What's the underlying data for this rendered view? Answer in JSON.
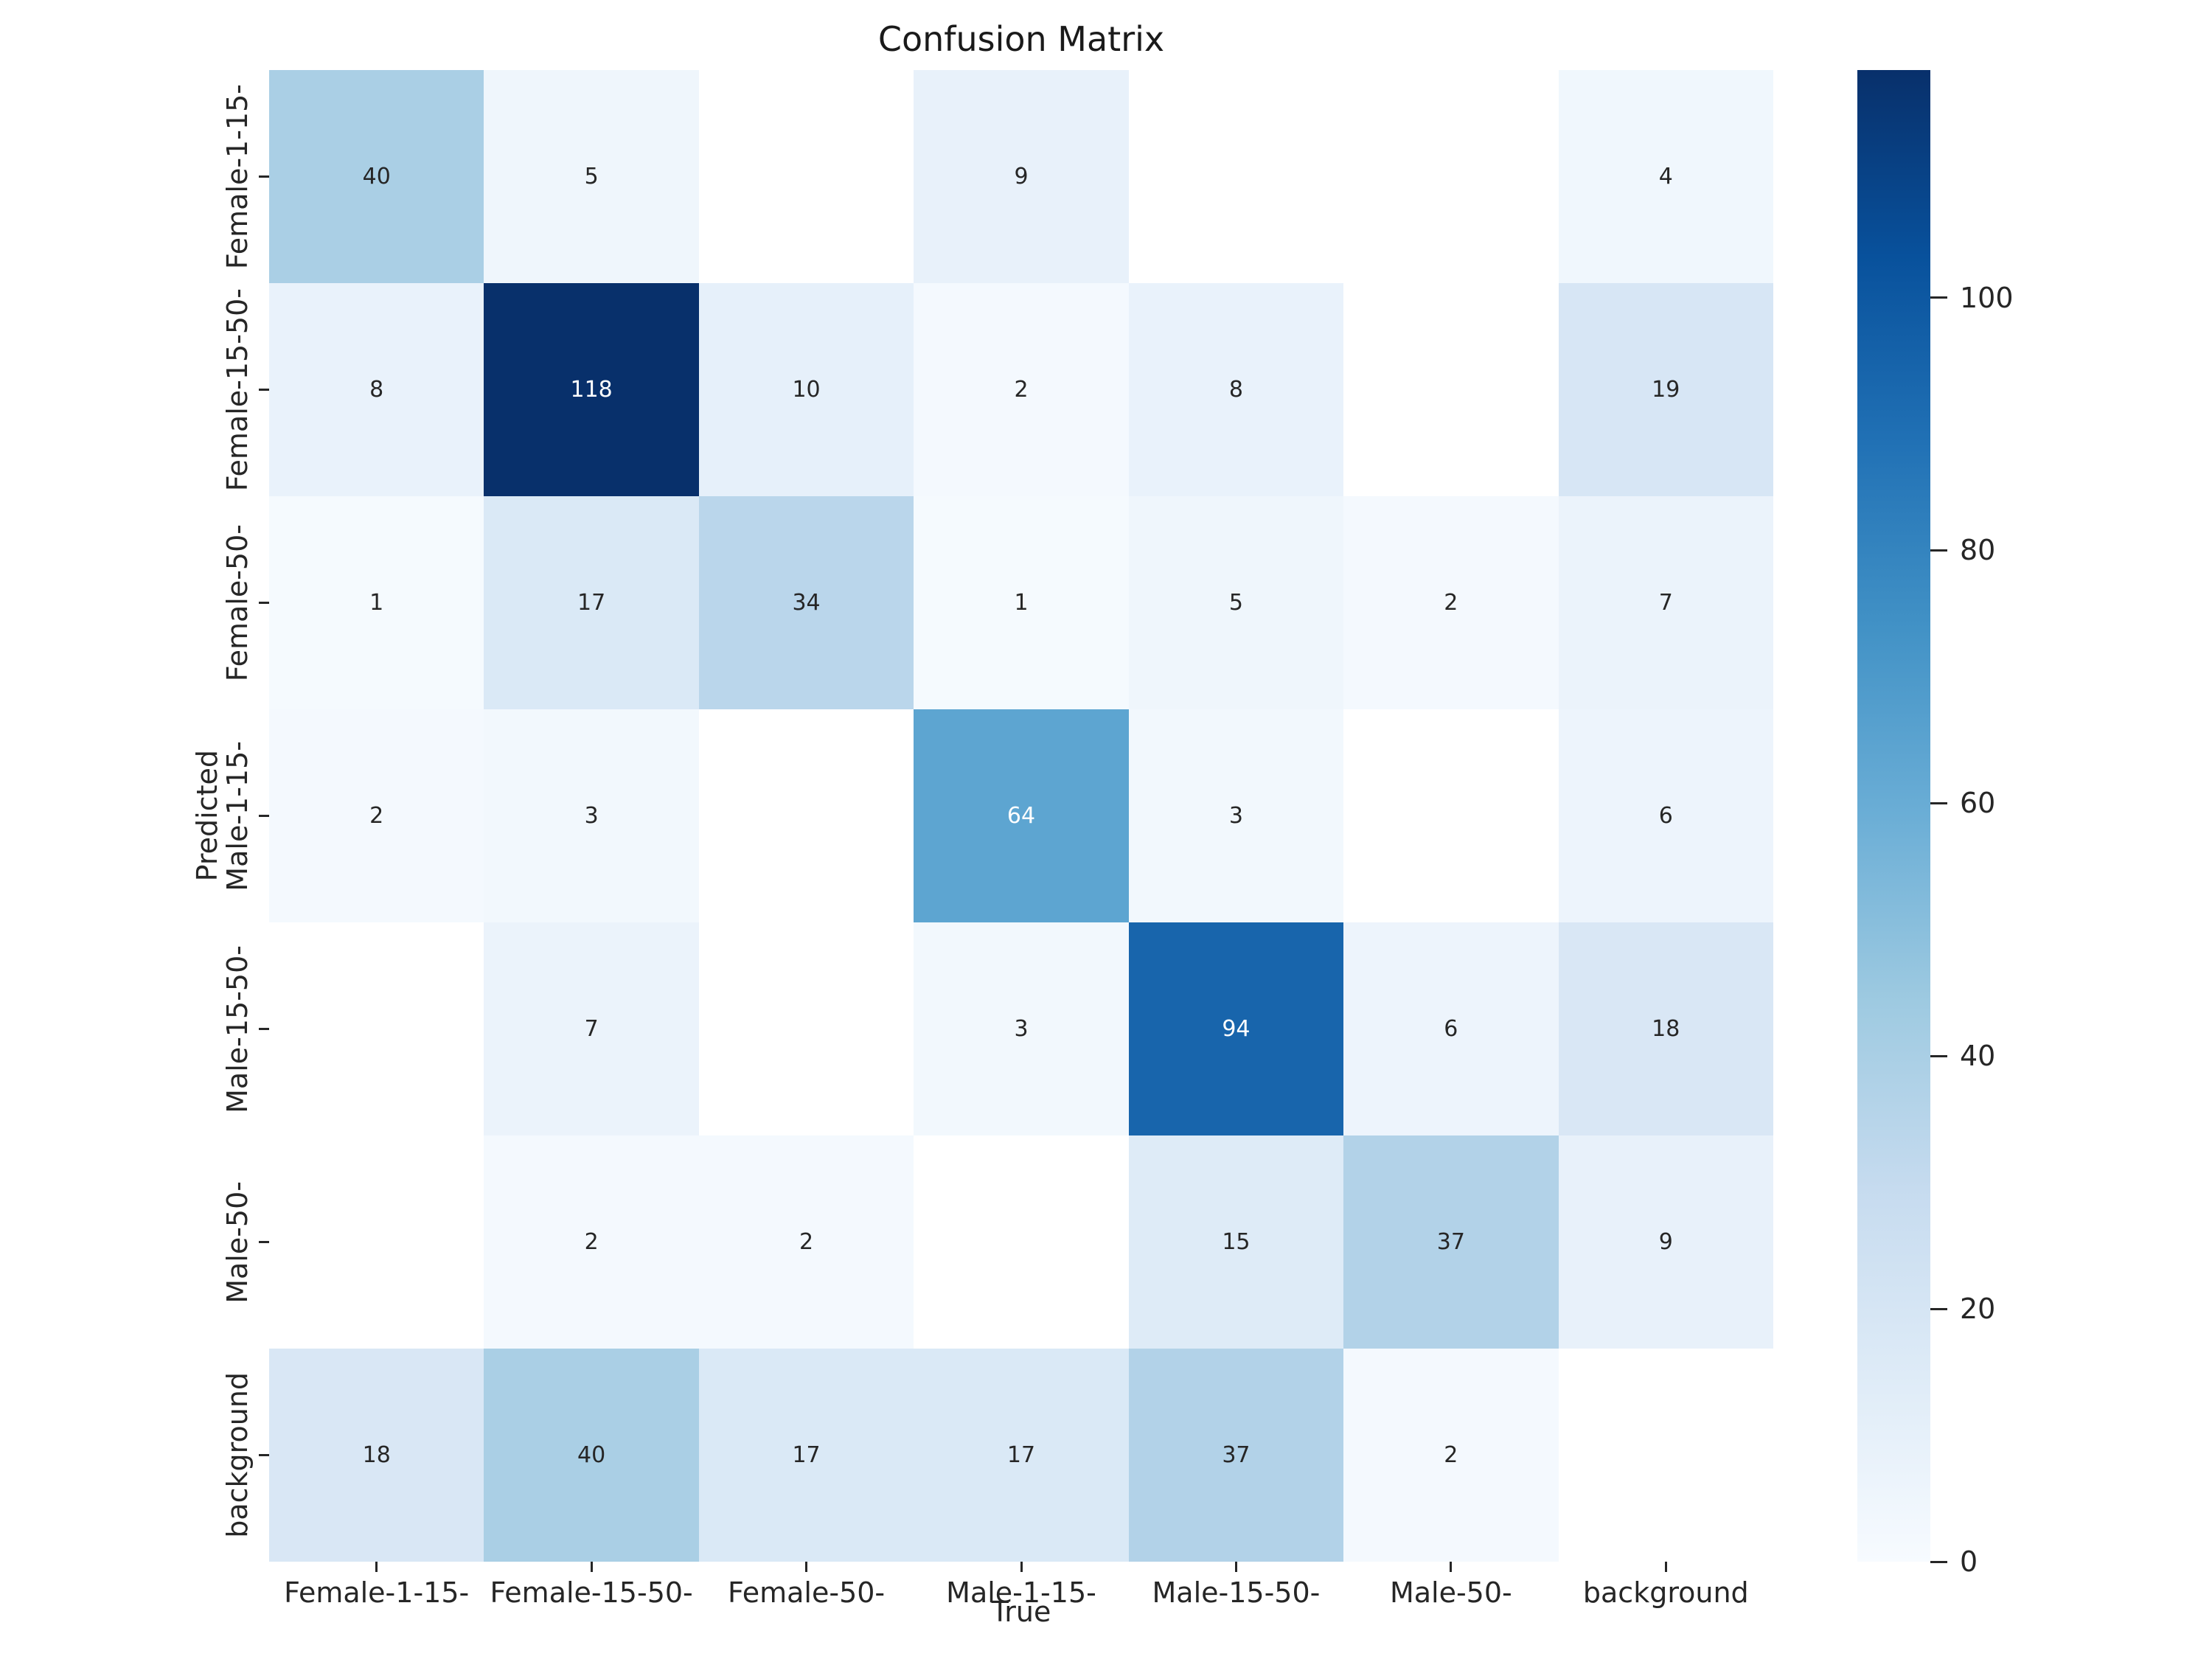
{
  "chart_data": {
    "type": "heatmap",
    "title": "Confusion Matrix",
    "xlabel": "True",
    "ylabel": "Predicted",
    "categories": [
      "Female-1-15-",
      "Female-15-50-",
      "Female-50-",
      "Male-1-15-",
      "Male-15-50-",
      "Male-50-",
      "background"
    ],
    "matrix": [
      [
        40,
        5,
        null,
        9,
        null,
        null,
        4
      ],
      [
        8,
        118,
        10,
        2,
        8,
        null,
        19
      ],
      [
        1,
        17,
        34,
        1,
        5,
        2,
        7
      ],
      [
        2,
        3,
        null,
        64,
        3,
        null,
        6
      ],
      [
        null,
        7,
        null,
        3,
        94,
        6,
        18
      ],
      [
        null,
        2,
        2,
        null,
        15,
        37,
        9
      ],
      [
        18,
        40,
        17,
        17,
        37,
        2,
        null
      ]
    ],
    "vmin": 0,
    "vmax": 118,
    "colormap": "Blues",
    "colormap_anchors": [
      "#f7fbff",
      "#deebf7",
      "#c6dbef",
      "#9ecae1",
      "#6baed6",
      "#4292c6",
      "#2171b5",
      "#08519c",
      "#08306b"
    ],
    "colorbar_ticks": [
      0,
      20,
      40,
      60,
      80,
      100
    ],
    "legend_position": "right-colorbar",
    "grid": false,
    "colors": {
      "annotation_dark": "#262626",
      "annotation_light": "#ffffff",
      "tick": "#262626",
      "empty_cell": "#ffffff",
      "background": "#ffffff"
    }
  }
}
